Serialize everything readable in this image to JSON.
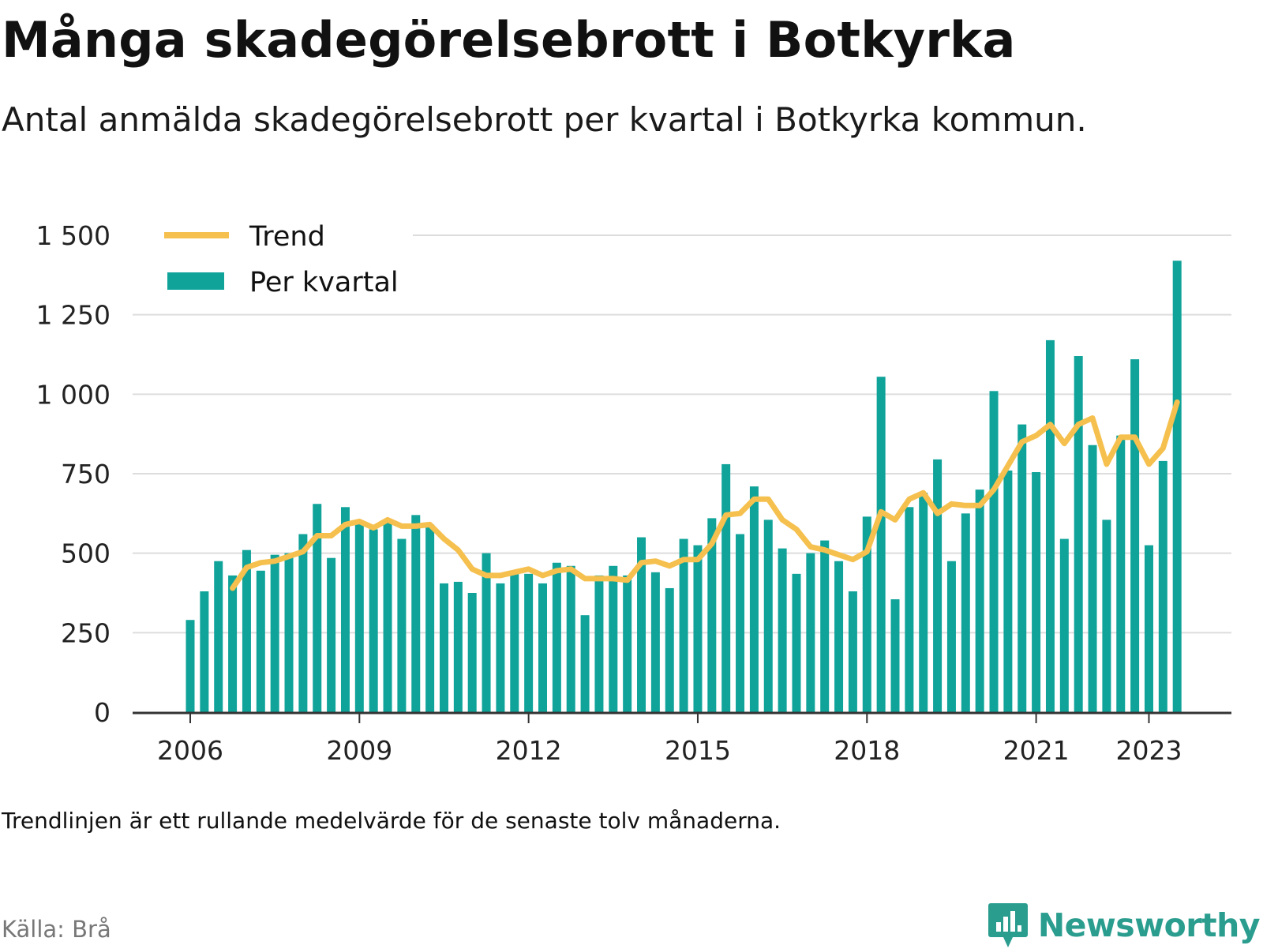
{
  "header": {
    "title": "Många skadegörelsebrott i Botkyrka",
    "subtitle": "Antal anmälda skadegörelsebrott per kvartal i Botkyrka kommun."
  },
  "footer": {
    "note": "Trendlinjen är ett rullande medelvärde för de senaste tolv månaderna.",
    "source": "Källa: Brå",
    "brand": "Newsworthy",
    "brand_icon": "bar-chart-speech-bubble-icon"
  },
  "colors": {
    "bars": "#0fa39a",
    "trend": "#f5c04e",
    "grid": "#dddddd",
    "axis": "#333333",
    "brand": "#2a9d8f"
  },
  "chart_data": {
    "type": "bar",
    "grid": true,
    "legend_position": "top-left",
    "ylim": [
      0,
      1500
    ],
    "yticks": [
      0,
      250,
      500,
      750,
      1000,
      1250,
      1500
    ],
    "ytick_labels": [
      "0",
      "250",
      "500",
      "750",
      "1 000",
      "1 250",
      "1 500"
    ],
    "xticks": [
      {
        "label": "2006",
        "index": 0
      },
      {
        "label": "2009",
        "index": 12
      },
      {
        "label": "2012",
        "index": 24
      },
      {
        "label": "2015",
        "index": 36
      },
      {
        "label": "2018",
        "index": 48
      },
      {
        "label": "2021",
        "index": 60
      },
      {
        "label": "2023",
        "index": 68
      }
    ],
    "categories": [
      "2006 Q1",
      "2006 Q2",
      "2006 Q3",
      "2006 Q4",
      "2007 Q1",
      "2007 Q2",
      "2007 Q3",
      "2007 Q4",
      "2008 Q1",
      "2008 Q2",
      "2008 Q3",
      "2008 Q4",
      "2009 Q1",
      "2009 Q2",
      "2009 Q3",
      "2009 Q4",
      "2010 Q1",
      "2010 Q2",
      "2010 Q3",
      "2010 Q4",
      "2011 Q1",
      "2011 Q2",
      "2011 Q3",
      "2011 Q4",
      "2012 Q1",
      "2012 Q2",
      "2012 Q3",
      "2012 Q4",
      "2013 Q1",
      "2013 Q2",
      "2013 Q3",
      "2013 Q4",
      "2014 Q1",
      "2014 Q2",
      "2014 Q3",
      "2014 Q4",
      "2015 Q1",
      "2015 Q2",
      "2015 Q3",
      "2015 Q4",
      "2016 Q1",
      "2016 Q2",
      "2016 Q3",
      "2016 Q4",
      "2017 Q1",
      "2017 Q2",
      "2017 Q3",
      "2017 Q4",
      "2018 Q1",
      "2018 Q2",
      "2018 Q3",
      "2018 Q4",
      "2019 Q1",
      "2019 Q2",
      "2019 Q3",
      "2019 Q4",
      "2020 Q1",
      "2020 Q2",
      "2020 Q3",
      "2020 Q4",
      "2021 Q1",
      "2021 Q2",
      "2021 Q3",
      "2021 Q4",
      "2022 Q1",
      "2022 Q2",
      "2022 Q3",
      "2022 Q4",
      "2023 Q1",
      "2023 Q2",
      "2023 Q3"
    ],
    "series": [
      {
        "name": "Per kvartal",
        "type": "bar",
        "values": [
          290,
          380,
          475,
          430,
          510,
          445,
          495,
          500,
          560,
          655,
          485,
          645,
          600,
          575,
          595,
          545,
          620,
          590,
          405,
          410,
          375,
          500,
          405,
          445,
          435,
          405,
          470,
          460,
          305,
          430,
          460,
          430,
          550,
          440,
          390,
          545,
          525,
          610,
          780,
          560,
          710,
          605,
          515,
          435,
          500,
          540,
          475,
          380,
          615,
          1055,
          355,
          645,
          690,
          795,
          475,
          625,
          700,
          1010,
          760,
          905,
          755,
          1170,
          545,
          1120,
          840,
          605,
          870,
          1110,
          525,
          790,
          1420
        ]
      },
      {
        "name": "Trend",
        "type": "line",
        "values": [
          null,
          null,
          null,
          390,
          455,
          470,
          475,
          490,
          505,
          555,
          555,
          590,
          600,
          580,
          605,
          585,
          585,
          590,
          545,
          510,
          450,
          430,
          430,
          440,
          450,
          430,
          445,
          450,
          420,
          420,
          420,
          415,
          470,
          475,
          460,
          480,
          480,
          530,
          620,
          625,
          670,
          670,
          605,
          575,
          520,
          510,
          495,
          480,
          505,
          630,
          605,
          670,
          690,
          625,
          655,
          650,
          650,
          700,
          775,
          850,
          870,
          905,
          845,
          905,
          925,
          780,
          865,
          865,
          780,
          830,
          975
        ]
      }
    ]
  }
}
